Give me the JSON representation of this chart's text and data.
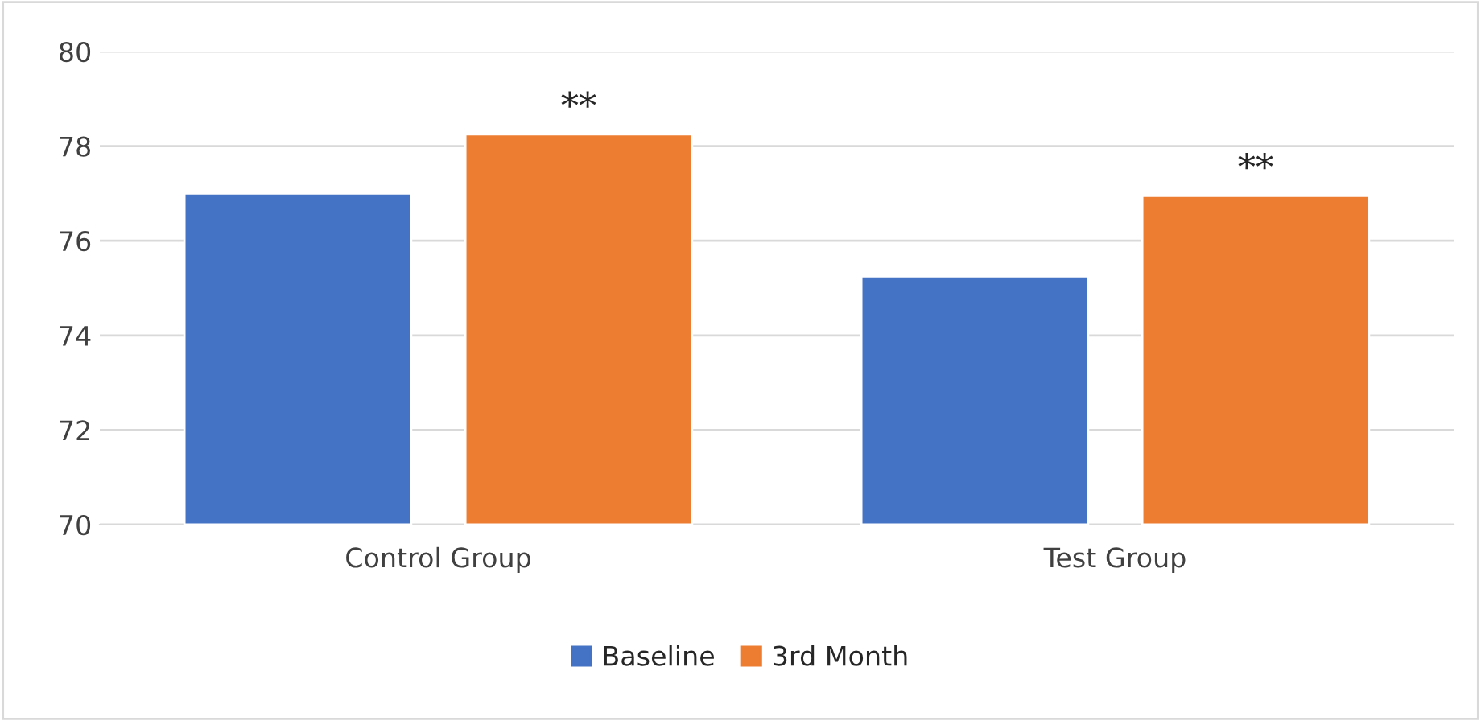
{
  "chart_data": {
    "type": "bar",
    "categories": [
      "Control Group",
      "Test Group"
    ],
    "series": [
      {
        "name": "Baseline",
        "color": "#4472c4",
        "values": [
          77.0,
          75.25
        ]
      },
      {
        "name": "3rd Month",
        "color": "#ed7d31",
        "values": [
          78.25,
          76.95
        ]
      }
    ],
    "ylim": [
      70,
      80
    ],
    "yticks": [
      70,
      72,
      74,
      76,
      78,
      80
    ],
    "grid": "y",
    "legend": "bottom",
    "annotations": [
      "**",
      "**"
    ]
  }
}
